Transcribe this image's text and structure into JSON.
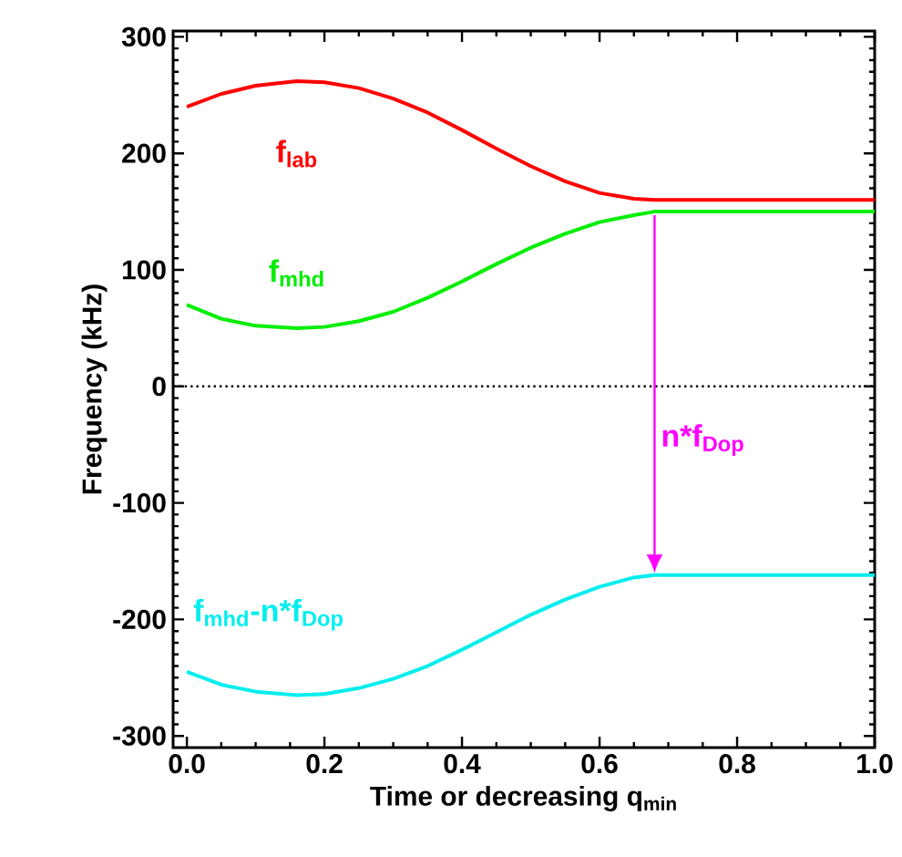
{
  "chart_data": {
    "type": "line",
    "xlabel": "Time or decreasing q$_{min}$",
    "ylabel": "Frequency (kHz)",
    "x": [
      0,
      0.05,
      0.1,
      0.16,
      0.2,
      0.25,
      0.3,
      0.35,
      0.4,
      0.45,
      0.5,
      0.55,
      0.6,
      0.65,
      0.68,
      0.75,
      0.85,
      1.0
    ],
    "series": [
      {
        "name": "f$_{lab}$",
        "color": "#ff0000",
        "values": [
          240,
          251,
          258,
          262,
          261,
          256,
          247,
          235,
          220,
          204,
          189,
          176,
          166,
          161,
          160,
          160,
          160,
          160
        ]
      },
      {
        "name": "f$_{mhd}$",
        "color": "#00ee00",
        "values": [
          70,
          58,
          52,
          50,
          51,
          56,
          64,
          76,
          90,
          105,
          119,
          131,
          141,
          147,
          150,
          150,
          150,
          150
        ]
      },
      {
        "name": "f$_{mhd}$-n*f$_{Dop}$",
        "color": "#00eeee",
        "values": [
          -245,
          -256,
          -262,
          -265,
          -264,
          -259,
          -251,
          -240,
          -226,
          -211,
          -196,
          -183,
          -172,
          -164,
          -162,
          -162,
          -162,
          -162
        ]
      }
    ],
    "annotations": [
      "n*f$_{Dop}$"
    ],
    "ref_lines": [
      {
        "axis": "y",
        "value": 0,
        "color": "#000000",
        "line_style": "dotted"
      }
    ],
    "xlim": [
      -0.02,
      1.0
    ],
    "ylim": [
      -310,
      305
    ],
    "xticks": [
      {
        "value": 0,
        "label": "0.0"
      },
      0.2,
      0.4,
      0.6,
      0.8,
      {
        "value": 1,
        "label": "1.0"
      }
    ],
    "yticks": [
      -300,
      -200,
      -100,
      0,
      100,
      200,
      300
    ],
    "grid": false,
    "marker": "none",
    "line_style": "solid"
  }
}
